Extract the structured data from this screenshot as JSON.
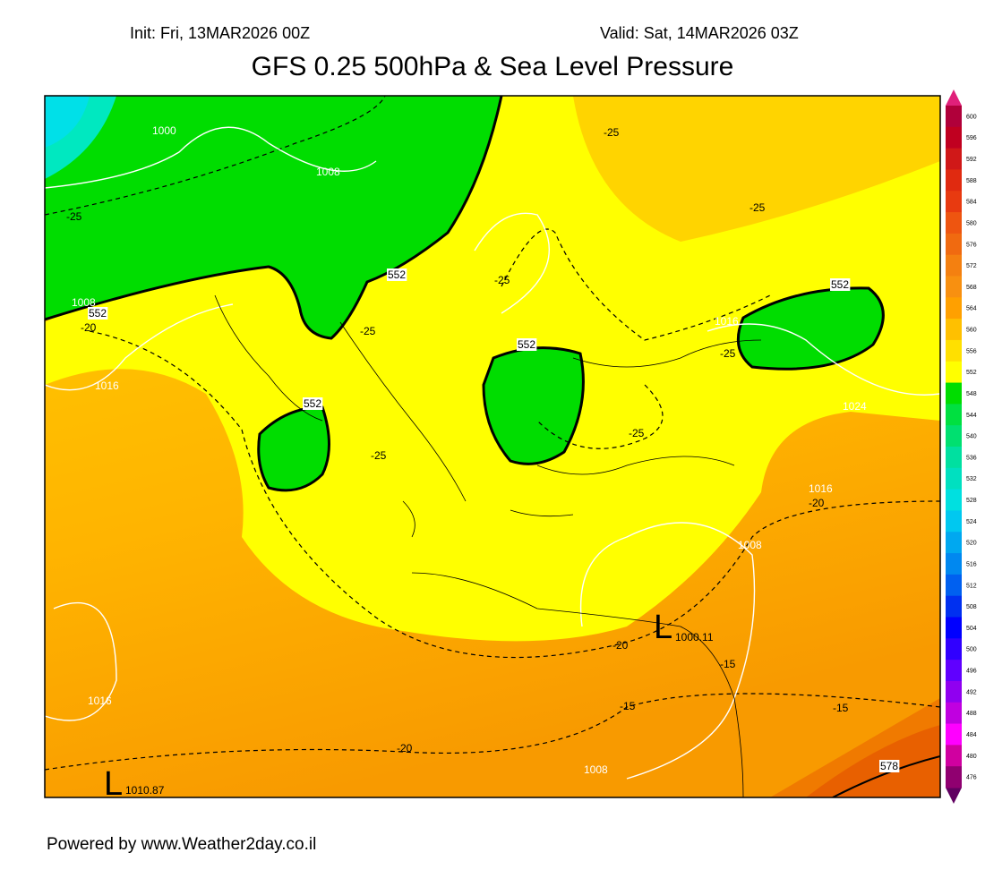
{
  "header": {
    "init": "Init: Fri, 13MAR2026 00Z",
    "valid": "Valid: Sat, 14MAR2026 03Z",
    "title": "GFS 0.25 500hPa & Sea Level Pressure"
  },
  "map": {
    "contour_labels": [
      "1000",
      "1008",
      "-25",
      "1008",
      "552",
      "-20",
      "1016",
      "552",
      "-25",
      "552",
      "-25",
      "-25",
      "552",
      "-25",
      "-25",
      "552",
      "1016",
      "-25",
      "1024",
      "-25",
      "1016",
      "-20",
      "1008",
      "-20",
      "-15",
      "-15",
      "-15",
      "1016",
      "-20",
      "1008",
      "578"
    ],
    "lows": [
      {
        "symbol": "L",
        "value": "1000.11"
      },
      {
        "symbol": "L",
        "value": "1010.87"
      }
    ]
  },
  "colorbar": {
    "labels": [
      600,
      596,
      592,
      588,
      584,
      580,
      576,
      572,
      568,
      564,
      560,
      556,
      552,
      548,
      544,
      540,
      536,
      532,
      528,
      524,
      520,
      516,
      512,
      508,
      504,
      500,
      496,
      492,
      488,
      484,
      480,
      476
    ]
  },
  "footer": "Powered by www.Weather2day.co.il"
}
